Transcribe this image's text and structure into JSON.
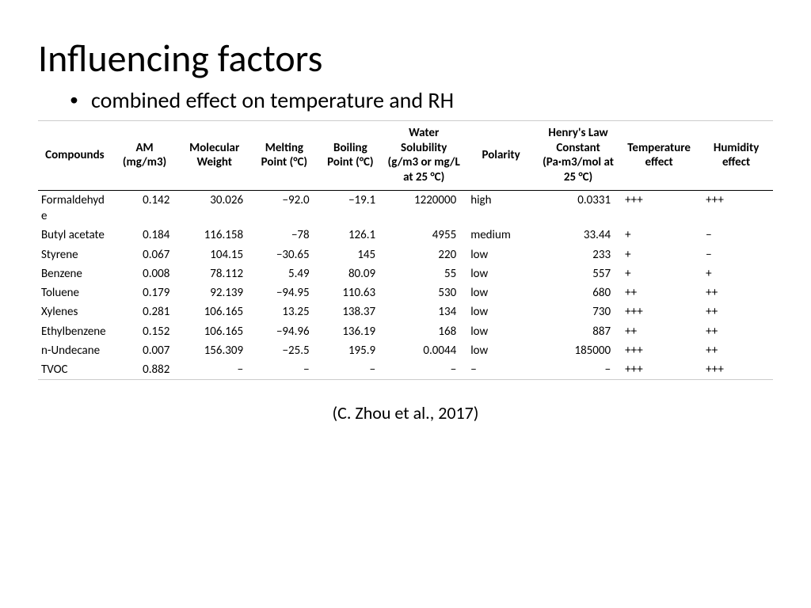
{
  "title": "Influencing factors",
  "subtitle": "combined effect on temperature and RH",
  "citation": "(C. Zhou et al., 2017)",
  "columns": [
    "Compounds",
    "AM (mg/m3)",
    "Molecular Weight",
    "Melting Point (°C)",
    "Boiling Point (°C)",
    "Water Solubility (g/m3 or mg/L at 25 °C)",
    "Polarity",
    "Henry's Law Constant (Pa·m3/mol at 25 °C)",
    "Temperature effect",
    "Humidity effect"
  ],
  "rows": [
    {
      "name": "Formaldehyde",
      "am": "0.142",
      "mw": "30.026",
      "mp": "−92.0",
      "bp": "−19.1",
      "ws": "1220000",
      "pol": "high",
      "hlc": "0.0331",
      "te": "+++",
      "he": "+++"
    },
    {
      "name": "Butyl acetate",
      "am": "0.184",
      "mw": "116.158",
      "mp": "−78",
      "bp": "126.1",
      "ws": "4955",
      "pol": "medium",
      "hlc": "33.44",
      "te": "+",
      "he": "−"
    },
    {
      "name": "Styrene",
      "am": "0.067",
      "mw": "104.15",
      "mp": "−30.65",
      "bp": "145",
      "ws": "220",
      "pol": "low",
      "hlc": "233",
      "te": "+",
      "he": "−"
    },
    {
      "name": "Benzene",
      "am": "0.008",
      "mw": "78.112",
      "mp": "5.49",
      "bp": "80.09",
      "ws": "55",
      "pol": "low",
      "hlc": "557",
      "te": "+",
      "he": "+"
    },
    {
      "name": "Toluene",
      "am": "0.179",
      "mw": "92.139",
      "mp": "−94.95",
      "bp": "110.63",
      "ws": "530",
      "pol": "low",
      "hlc": "680",
      "te": "++",
      "he": "++"
    },
    {
      "name": "Xylenes",
      "am": "0.281",
      "mw": "106.165",
      "mp": "13.25",
      "bp": "138.37",
      "ws": "134",
      "pol": "low",
      "hlc": "730",
      "te": "+++",
      "he": "++"
    },
    {
      "name": "Ethylbenzene",
      "am": "0.152",
      "mw": "106.165",
      "mp": "−94.96",
      "bp": "136.19",
      "ws": "168",
      "pol": "low",
      "hlc": "887",
      "te": "++",
      "he": "++"
    },
    {
      "name": "n-Undecane",
      "am": "0.007",
      "mw": "156.309",
      "mp": "−25.5",
      "bp": "195.9",
      "ws": "0.0044",
      "pol": "low",
      "hlc": "185000",
      "te": "+++",
      "he": "++"
    },
    {
      "name": "TVOC",
      "am": "0.882",
      "mw": "−",
      "mp": "−",
      "bp": "−",
      "ws": "−",
      "pol": "−",
      "hlc": "−",
      "te": "+++",
      "he": "+++"
    }
  ]
}
